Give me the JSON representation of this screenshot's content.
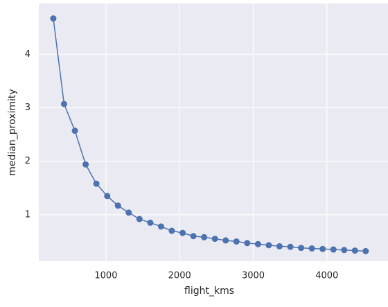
{
  "chart_data": {
    "type": "line",
    "xlabel": "flight_kms",
    "ylabel": "median_proximity",
    "x": [
      285,
      431,
      578,
      724,
      870,
      1017,
      1163,
      1309,
      1455,
      1602,
      1748,
      1894,
      2041,
      2187,
      2333,
      2480,
      2626,
      2772,
      2918,
      3065,
      3211,
      3357,
      3504,
      3650,
      3796,
      3943,
      4089,
      4235,
      4381,
      4527
    ],
    "series": [
      {
        "name": "median_proximity",
        "color": "#4c72b0",
        "values": [
          4.67,
          3.07,
          2.57,
          1.94,
          1.58,
          1.35,
          1.17,
          1.04,
          0.92,
          0.85,
          0.78,
          0.7,
          0.66,
          0.6,
          0.58,
          0.55,
          0.52,
          0.5,
          0.47,
          0.45,
          0.43,
          0.41,
          0.4,
          0.38,
          0.37,
          0.36,
          0.35,
          0.34,
          0.33,
          0.32
        ]
      }
    ],
    "xlim": [
      88,
      4830
    ],
    "ylim": [
      0.13,
      4.95
    ],
    "xticks": [
      1000,
      2000,
      3000,
      4000
    ],
    "yticks": [
      1,
      2,
      3,
      4
    ],
    "grid": true,
    "markers": true
  }
}
